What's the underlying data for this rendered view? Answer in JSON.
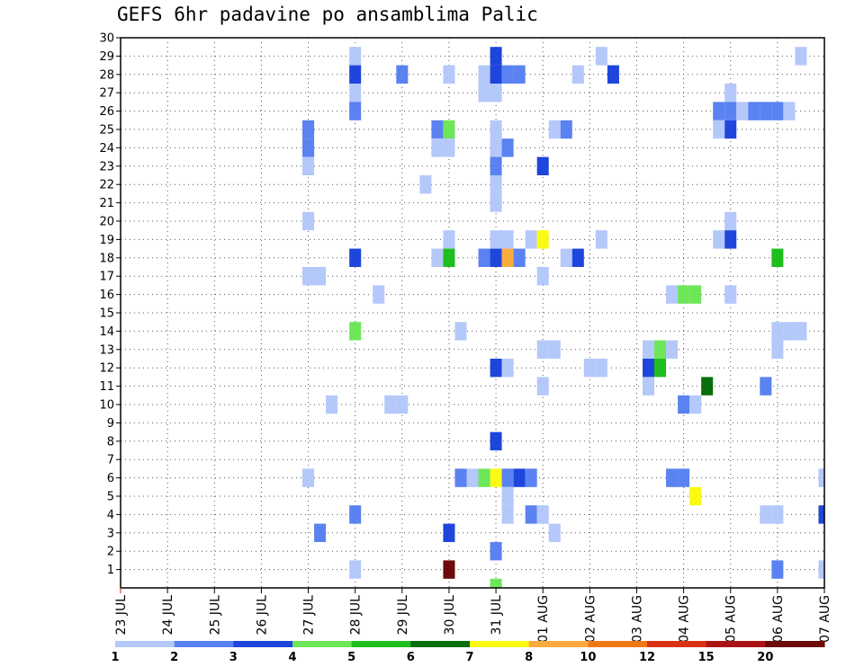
{
  "chart_data": {
    "type": "heatmap",
    "title": "GEFS 6hr padavine po ansamblima Palic",
    "xlabel": "",
    "ylabel": "",
    "x_tick_labels": [
      "23 JUL",
      "24 JUL",
      "25 JUL",
      "26 JUL",
      "27 JUL",
      "28 JUL",
      "29 JUL",
      "30 JUL",
      "31 JUL",
      "01 AUG",
      "02 AUG",
      "03 AUG",
      "04 AUG",
      "05 AUG",
      "06 AUG",
      "07 AUG"
    ],
    "y_tick_labels": [
      "1",
      "2",
      "3",
      "4",
      "5",
      "6",
      "7",
      "8",
      "9",
      "10",
      "11",
      "12",
      "13",
      "14",
      "15",
      "16",
      "17",
      "18",
      "19",
      "20",
      "21",
      "22",
      "23",
      "24",
      "25",
      "26",
      "27",
      "28",
      "29",
      "30"
    ],
    "x_axis": {
      "unit": "6-hour step (day index from 23 JUL 00z)",
      "range": [
        0,
        15
      ]
    },
    "y_axis": {
      "unit": "ensemble member",
      "range": [
        0,
        30
      ]
    },
    "grid": true,
    "legend": {
      "placement": "bottom",
      "thresholds": [
        "1",
        "2",
        "3",
        "4",
        "5",
        "6",
        "7",
        "8",
        "10",
        "12",
        "15",
        "20"
      ],
      "colors": [
        "#b4c8fa",
        "#5a82f0",
        "#1e46dc",
        "#6ee65a",
        "#1ebe1e",
        "#0a6e0a",
        "#fafa14",
        "#faaa3c",
        "#f07814",
        "#dc3214",
        "#aa1414",
        "#6e0a0a"
      ]
    },
    "cells": [
      {
        "x": 5,
        "y": 29,
        "c": 0
      },
      {
        "x": 8,
        "y": 29,
        "c": 2
      },
      {
        "x": 10.25,
        "y": 29,
        "c": 0
      },
      {
        "x": 14.5,
        "y": 29,
        "c": 0
      },
      {
        "x": 5,
        "y": 28,
        "c": 2
      },
      {
        "x": 6,
        "y": 28,
        "c": 1
      },
      {
        "x": 7,
        "y": 28,
        "c": 0
      },
      {
        "x": 7.75,
        "y": 28,
        "c": 0
      },
      {
        "x": 8,
        "y": 28,
        "c": 2
      },
      {
        "x": 8.25,
        "y": 28,
        "c": 1
      },
      {
        "x": 8.5,
        "y": 28,
        "c": 1
      },
      {
        "x": 9.75,
        "y": 28,
        "c": 0
      },
      {
        "x": 10.5,
        "y": 28,
        "c": 2
      },
      {
        "x": 5,
        "y": 27,
        "c": 0
      },
      {
        "x": 7.75,
        "y": 27,
        "c": 0
      },
      {
        "x": 8,
        "y": 27,
        "c": 0
      },
      {
        "x": 13,
        "y": 27,
        "c": 0
      },
      {
        "x": 5,
        "y": 26,
        "c": 1
      },
      {
        "x": 12.75,
        "y": 26,
        "c": 1
      },
      {
        "x": 13,
        "y": 26,
        "c": 1
      },
      {
        "x": 13.25,
        "y": 26,
        "c": 0
      },
      {
        "x": 13.5,
        "y": 26,
        "c": 1
      },
      {
        "x": 13.75,
        "y": 26,
        "c": 1
      },
      {
        "x": 14,
        "y": 26,
        "c": 1
      },
      {
        "x": 14.25,
        "y": 26,
        "c": 0
      },
      {
        "x": 4,
        "y": 25,
        "c": 1
      },
      {
        "x": 6.75,
        "y": 25,
        "c": 1
      },
      {
        "x": 7,
        "y": 25,
        "c": 3
      },
      {
        "x": 8,
        "y": 25,
        "c": 0
      },
      {
        "x": 9.25,
        "y": 25,
        "c": 0
      },
      {
        "x": 9.5,
        "y": 25,
        "c": 1
      },
      {
        "x": 12.75,
        "y": 25,
        "c": 0
      },
      {
        "x": 13,
        "y": 25,
        "c": 2
      },
      {
        "x": 4,
        "y": 24,
        "c": 1
      },
      {
        "x": 6.75,
        "y": 24,
        "c": 0
      },
      {
        "x": 7,
        "y": 24,
        "c": 0
      },
      {
        "x": 8,
        "y": 24,
        "c": 0
      },
      {
        "x": 8.25,
        "y": 24,
        "c": 1
      },
      {
        "x": 4,
        "y": 23,
        "c": 0
      },
      {
        "x": 8,
        "y": 23,
        "c": 1
      },
      {
        "x": 9,
        "y": 23,
        "c": 2
      },
      {
        "x": 6.5,
        "y": 22,
        "c": 0
      },
      {
        "x": 8,
        "y": 22,
        "c": 0
      },
      {
        "x": 8,
        "y": 21,
        "c": 0
      },
      {
        "x": 4,
        "y": 20,
        "c": 0
      },
      {
        "x": 13,
        "y": 20,
        "c": 0
      },
      {
        "x": 7,
        "y": 19,
        "c": 0
      },
      {
        "x": 8,
        "y": 19,
        "c": 0
      },
      {
        "x": 8.25,
        "y": 19,
        "c": 0
      },
      {
        "x": 8.75,
        "y": 19,
        "c": 0
      },
      {
        "x": 9,
        "y": 19,
        "c": 6
      },
      {
        "x": 10.25,
        "y": 19,
        "c": 0
      },
      {
        "x": 12.75,
        "y": 19,
        "c": 0
      },
      {
        "x": 13,
        "y": 19,
        "c": 2
      },
      {
        "x": 5,
        "y": 18,
        "c": 2
      },
      {
        "x": 6.75,
        "y": 18,
        "c": 0
      },
      {
        "x": 7,
        "y": 18,
        "c": 4
      },
      {
        "x": 7.75,
        "y": 18,
        "c": 1
      },
      {
        "x": 8,
        "y": 18,
        "c": 2
      },
      {
        "x": 8.25,
        "y": 18,
        "c": 7
      },
      {
        "x": 8.5,
        "y": 18,
        "c": 1
      },
      {
        "x": 9.5,
        "y": 18,
        "c": 0
      },
      {
        "x": 9.75,
        "y": 18,
        "c": 2
      },
      {
        "x": 14,
        "y": 18,
        "c": 4
      },
      {
        "x": 4,
        "y": 17,
        "c": 0
      },
      {
        "x": 4.25,
        "y": 17,
        "c": 0
      },
      {
        "x": 9,
        "y": 17,
        "c": 0
      },
      {
        "x": 5.5,
        "y": 16,
        "c": 0
      },
      {
        "x": 11.75,
        "y": 16,
        "c": 0
      },
      {
        "x": 12,
        "y": 16,
        "c": 3
      },
      {
        "x": 12.25,
        "y": 16,
        "c": 3
      },
      {
        "x": 13,
        "y": 16,
        "c": 0
      },
      {
        "x": 5,
        "y": 14,
        "c": 3
      },
      {
        "x": 7.25,
        "y": 14,
        "c": 0
      },
      {
        "x": 14,
        "y": 14,
        "c": 0
      },
      {
        "x": 14.25,
        "y": 14,
        "c": 0
      },
      {
        "x": 14.5,
        "y": 14,
        "c": 0
      },
      {
        "x": 9,
        "y": 13,
        "c": 0
      },
      {
        "x": 9.25,
        "y": 13,
        "c": 0
      },
      {
        "x": 11.25,
        "y": 13,
        "c": 0
      },
      {
        "x": 11.5,
        "y": 13,
        "c": 3
      },
      {
        "x": 11.75,
        "y": 13,
        "c": 0
      },
      {
        "x": 14,
        "y": 13,
        "c": 0
      },
      {
        "x": 8,
        "y": 12,
        "c": 2
      },
      {
        "x": 8.25,
        "y": 12,
        "c": 0
      },
      {
        "x": 10,
        "y": 12,
        "c": 0
      },
      {
        "x": 10.25,
        "y": 12,
        "c": 0
      },
      {
        "x": 11.25,
        "y": 12,
        "c": 2
      },
      {
        "x": 11.5,
        "y": 12,
        "c": 4
      },
      {
        "x": 9,
        "y": 11,
        "c": 0
      },
      {
        "x": 11.25,
        "y": 11,
        "c": 0
      },
      {
        "x": 12.5,
        "y": 11,
        "c": 5
      },
      {
        "x": 13.75,
        "y": 11,
        "c": 1
      },
      {
        "x": 4.5,
        "y": 10,
        "c": 0
      },
      {
        "x": 5.75,
        "y": 10,
        "c": 0
      },
      {
        "x": 6,
        "y": 10,
        "c": 0
      },
      {
        "x": 12,
        "y": 10,
        "c": 1
      },
      {
        "x": 12.25,
        "y": 10,
        "c": 0
      },
      {
        "x": 8,
        "y": 8,
        "c": 2
      },
      {
        "x": 4,
        "y": 6,
        "c": 0
      },
      {
        "x": 7.25,
        "y": 6,
        "c": 1
      },
      {
        "x": 7.5,
        "y": 6,
        "c": 0
      },
      {
        "x": 7.75,
        "y": 6,
        "c": 3
      },
      {
        "x": 8,
        "y": 6,
        "c": 6
      },
      {
        "x": 8.25,
        "y": 6,
        "c": 1
      },
      {
        "x": 8.5,
        "y": 6,
        "c": 2
      },
      {
        "x": 8.75,
        "y": 6,
        "c": 1
      },
      {
        "x": 11.75,
        "y": 6,
        "c": 1
      },
      {
        "x": 12,
        "y": 6,
        "c": 1
      },
      {
        "x": 15,
        "y": 6,
        "c": 0
      },
      {
        "x": 8.25,
        "y": 5,
        "c": 0
      },
      {
        "x": 12.25,
        "y": 5,
        "c": 6
      },
      {
        "x": 5,
        "y": 4,
        "c": 1
      },
      {
        "x": 8.25,
        "y": 4,
        "c": 0
      },
      {
        "x": 8.75,
        "y": 4,
        "c": 1
      },
      {
        "x": 9,
        "y": 4,
        "c": 0
      },
      {
        "x": 13.75,
        "y": 4,
        "c": 0
      },
      {
        "x": 14,
        "y": 4,
        "c": 0
      },
      {
        "x": 15,
        "y": 4,
        "c": 2
      },
      {
        "x": 4.25,
        "y": 3,
        "c": 1
      },
      {
        "x": 7,
        "y": 3,
        "c": 2
      },
      {
        "x": 9.25,
        "y": 3,
        "c": 0
      },
      {
        "x": 8,
        "y": 2,
        "c": 1
      },
      {
        "x": 5,
        "y": 1,
        "c": 0
      },
      {
        "x": 7,
        "y": 1,
        "c": 11
      },
      {
        "x": 14,
        "y": 1,
        "c": 1
      },
      {
        "x": 15,
        "y": 1,
        "c": 0
      },
      {
        "x": 8,
        "y": 0,
        "c": 3
      }
    ]
  }
}
